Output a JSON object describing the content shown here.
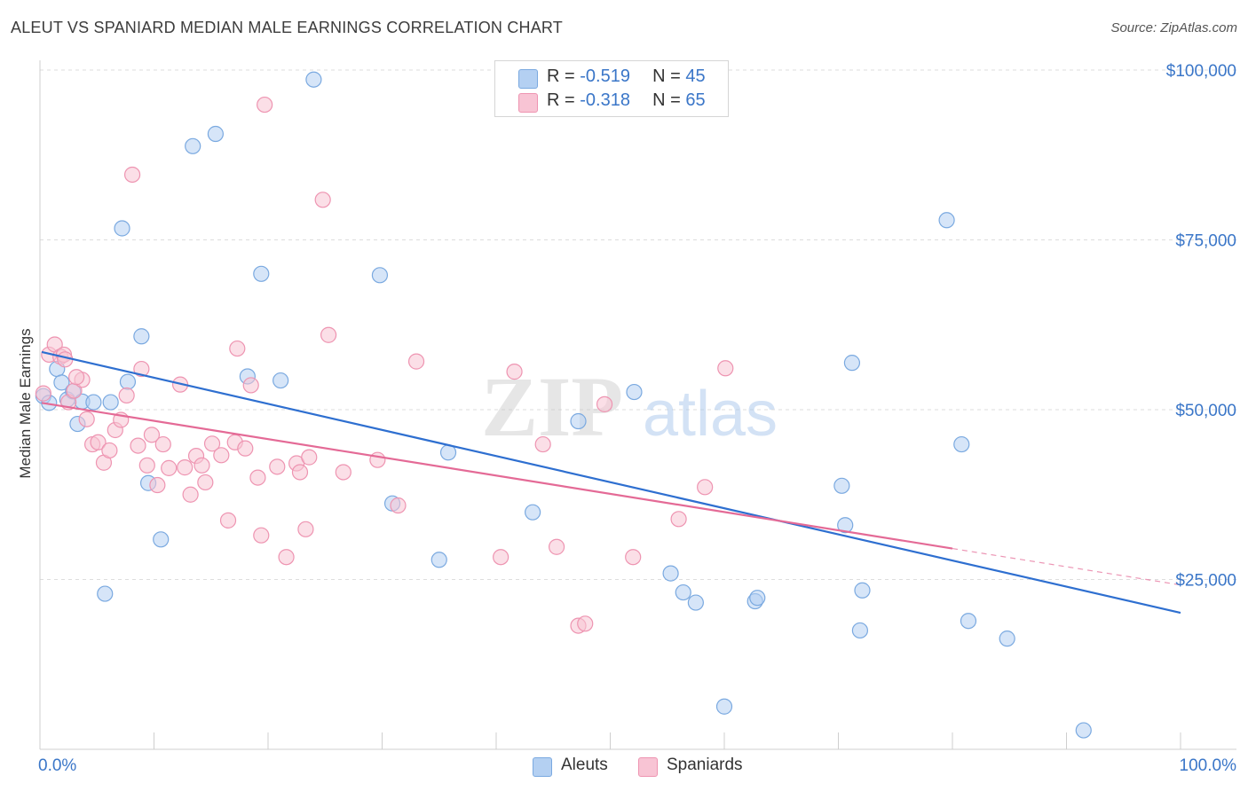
{
  "header": {
    "title": "ALEUT VS SPANIARD MEDIAN MALE EARNINGS CORRELATION CHART",
    "source": "Source: ZipAtlas.com"
  },
  "watermark": {
    "zip": "ZIP",
    "atlas": "atlas"
  },
  "legend": {
    "aleuts": {
      "r_label": "R =",
      "r_value": "-0.519",
      "n_label": "N =",
      "n_value": "45"
    },
    "spaniards": {
      "r_label": "R =",
      "r_value": "-0.318",
      "n_label": "N =",
      "n_value": "65"
    }
  },
  "bottom_legend": {
    "aleuts": "Aleuts",
    "spaniards": "Spaniards"
  },
  "colors": {
    "aleuts_fill": "#b4d0f2",
    "aleuts_stroke": "#7aa9e0",
    "aleuts_line": "#2e6fd0",
    "spaniards_fill": "#f8c4d4",
    "spaniards_stroke": "#ee94b1",
    "spaniards_line": "#e46a96",
    "tick_label": "#3a76c8",
    "grid": "#dddddd"
  },
  "chart_data": {
    "type": "scatter",
    "title": "ALEUT VS SPANIARD MEDIAN MALE EARNINGS CORRELATION CHART",
    "xlabel": "",
    "ylabel": "Median Male Earnings",
    "xlim": [
      0,
      100
    ],
    "ylim": [
      0,
      103000
    ],
    "x_tick_labels": [
      {
        "value": 0,
        "label": "0.0%"
      },
      {
        "value": 100,
        "label": "100.0%"
      }
    ],
    "y_ticks": [
      {
        "value": 25000,
        "label": "$25,000"
      },
      {
        "value": 50000,
        "label": "$50,000"
      },
      {
        "value": 75000,
        "label": "$75,000"
      },
      {
        "value": 100000,
        "label": "$100,000"
      }
    ],
    "series": [
      {
        "name": "Aleuts",
        "r": -0.519,
        "n": 45,
        "trend": {
          "x0": 0,
          "y0": 58500,
          "x1": 100,
          "y1": 20100
        },
        "points": [
          [
            0.3,
            52000
          ],
          [
            0.8,
            51000
          ],
          [
            1.5,
            56000
          ],
          [
            1.9,
            54000
          ],
          [
            2.4,
            51500
          ],
          [
            2.9,
            52700
          ],
          [
            3.3,
            47900
          ],
          [
            3.7,
            51200
          ],
          [
            4.7,
            51100
          ],
          [
            5.7,
            22900
          ],
          [
            6.2,
            51100
          ],
          [
            7.2,
            76700
          ],
          [
            7.7,
            54100
          ],
          [
            8.9,
            60800
          ],
          [
            9.5,
            39200
          ],
          [
            10.6,
            30900
          ],
          [
            13.4,
            88800
          ],
          [
            15.4,
            90600
          ],
          [
            18.2,
            54900
          ],
          [
            19.4,
            70000
          ],
          [
            21.1,
            54300
          ],
          [
            24.0,
            98600
          ],
          [
            29.8,
            69800
          ],
          [
            30.9,
            36200
          ],
          [
            35.0,
            27900
          ],
          [
            35.8,
            43700
          ],
          [
            43.2,
            34900
          ],
          [
            47.2,
            48300
          ],
          [
            52.1,
            52600
          ],
          [
            55.3,
            25900
          ],
          [
            56.4,
            23100
          ],
          [
            57.5,
            21600
          ],
          [
            60.0,
            6300
          ],
          [
            62.7,
            21800
          ],
          [
            62.9,
            22300
          ],
          [
            70.6,
            33000
          ],
          [
            71.2,
            56900
          ],
          [
            71.9,
            17500
          ],
          [
            72.1,
            23400
          ],
          [
            70.3,
            38800
          ],
          [
            79.5,
            77900
          ],
          [
            80.8,
            44900
          ],
          [
            81.4,
            18900
          ],
          [
            84.8,
            16300
          ],
          [
            91.5,
            2800
          ]
        ]
      },
      {
        "name": "Spaniards",
        "r": -0.318,
        "n": 65,
        "trend": {
          "x0": 0,
          "y0": 51000,
          "x1": 100,
          "y1": 24200,
          "solid_until": 80
        },
        "points": [
          [
            0.3,
            52400
          ],
          [
            0.8,
            58100
          ],
          [
            1.3,
            59600
          ],
          [
            1.8,
            57800
          ],
          [
            2.1,
            58100
          ],
          [
            2.5,
            51100
          ],
          [
            3.0,
            52800
          ],
          [
            3.7,
            54400
          ],
          [
            4.1,
            48600
          ],
          [
            4.6,
            44900
          ],
          [
            5.1,
            45200
          ],
          [
            5.6,
            42200
          ],
          [
            6.1,
            44000
          ],
          [
            6.6,
            47000
          ],
          [
            7.1,
            48500
          ],
          [
            7.6,
            52100
          ],
          [
            8.1,
            84600
          ],
          [
            8.6,
            44700
          ],
          [
            8.9,
            56000
          ],
          [
            9.4,
            41800
          ],
          [
            9.8,
            46300
          ],
          [
            10.3,
            38900
          ],
          [
            10.8,
            44900
          ],
          [
            11.3,
            41400
          ],
          [
            12.3,
            53700
          ],
          [
            12.7,
            41500
          ],
          [
            13.2,
            37500
          ],
          [
            13.7,
            43200
          ],
          [
            14.2,
            41800
          ],
          [
            14.5,
            39300
          ],
          [
            15.1,
            45000
          ],
          [
            15.9,
            43300
          ],
          [
            16.5,
            33700
          ],
          [
            17.1,
            45200
          ],
          [
            17.3,
            59000
          ],
          [
            18.0,
            44300
          ],
          [
            18.5,
            53600
          ],
          [
            19.1,
            40000
          ],
          [
            19.4,
            31500
          ],
          [
            19.7,
            94900
          ],
          [
            20.8,
            41600
          ],
          [
            21.6,
            28300
          ],
          [
            22.5,
            42100
          ],
          [
            22.8,
            40800
          ],
          [
            23.3,
            32400
          ],
          [
            23.6,
            43000
          ],
          [
            24.8,
            80900
          ],
          [
            25.3,
            61000
          ],
          [
            26.6,
            40800
          ],
          [
            29.6,
            42600
          ],
          [
            31.4,
            35900
          ],
          [
            33.0,
            57100
          ],
          [
            40.4,
            28300
          ],
          [
            41.6,
            55600
          ],
          [
            44.1,
            44900
          ],
          [
            45.3,
            29800
          ],
          [
            47.2,
            18200
          ],
          [
            47.8,
            18500
          ],
          [
            49.5,
            50800
          ],
          [
            52.0,
            28300
          ],
          [
            56.0,
            33900
          ],
          [
            58.3,
            38600
          ],
          [
            60.1,
            56100
          ],
          [
            2.2,
            57400
          ],
          [
            3.2,
            54800
          ]
        ]
      }
    ]
  }
}
